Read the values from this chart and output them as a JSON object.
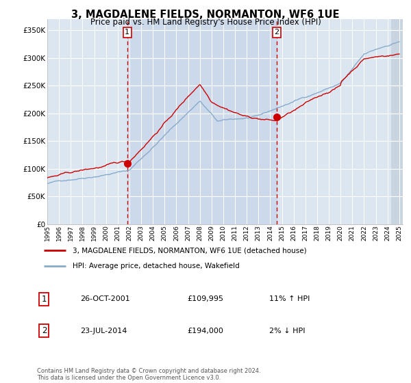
{
  "title": "3, MAGDALENE FIELDS, NORMANTON, WF6 1UE",
  "subtitle": "Price paid vs. HM Land Registry's House Price Index (HPI)",
  "legend_line1": "3, MAGDALENE FIELDS, NORMANTON, WF6 1UE (detached house)",
  "legend_line2": "HPI: Average price, detached house, Wakefield",
  "annotation1_date": "26-OCT-2001",
  "annotation1_price": "£109,995",
  "annotation1_hpi": "11% ↑ HPI",
  "annotation2_date": "23-JUL-2014",
  "annotation2_price": "£194,000",
  "annotation2_hpi": "2% ↓ HPI",
  "footer": "Contains HM Land Registry data © Crown copyright and database right 2024.\nThis data is licensed under the Open Government Licence v3.0.",
  "ylim": [
    0,
    370000
  ],
  "yticks": [
    0,
    50000,
    100000,
    150000,
    200000,
    250000,
    300000,
    350000
  ],
  "price_color": "#cc0000",
  "hpi_color": "#88aacc",
  "vline_color": "#cc0000",
  "bg_color": "#dce6f1",
  "shade_color": "#ccd9ea",
  "hatch_color": "#c8d4e0",
  "grid_color": "#ffffff",
  "annotation_box_color": "#cc0000",
  "sale1_x": 2001.82,
  "sale1_y": 109995,
  "sale2_x": 2014.55,
  "sale2_y": 194000,
  "xmin": 1995.0,
  "xmax": 2025.3
}
